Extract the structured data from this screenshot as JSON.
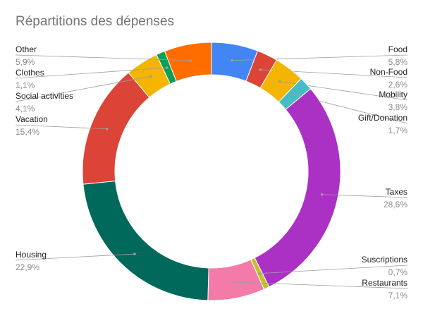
{
  "chart_data": {
    "type": "pie",
    "title": "Répartitions des dépenses",
    "donut": true,
    "legend": "none",
    "slices": [
      {
        "label": "Food",
        "value": 5.8,
        "value_label": "5,8%",
        "color": "#4285f4"
      },
      {
        "label": "Non-Food",
        "value": 2.6,
        "value_label": "2,6%",
        "color": "#db4437"
      },
      {
        "label": "Mobility",
        "value": 3.8,
        "value_label": "3,8%",
        "color": "#f4b400"
      },
      {
        "label": "Gift/Donation",
        "value": 1.7,
        "value_label": "1,7%",
        "color": "#46bdc6"
      },
      {
        "label": "Taxes",
        "value": 28.6,
        "value_label": "28,6%",
        "color": "#ab30c4"
      },
      {
        "label": "Suscriptions",
        "value": 0.7,
        "value_label": "0,7%",
        "color": "#c4c22a"
      },
      {
        "label": "Restaurants",
        "value": 7.1,
        "value_label": "7,1%",
        "color": "#f47aa8"
      },
      {
        "label": "Housing",
        "value": 22.9,
        "value_label": "22,9%",
        "color": "#00695c"
      },
      {
        "label": "Vacation",
        "value": 15.4,
        "value_label": "15,4%",
        "color": "#db4437"
      },
      {
        "label": "Social activities",
        "value": 4.1,
        "value_label": "4,1%",
        "color": "#f4b400"
      },
      {
        "label": "Clothes",
        "value": 1.1,
        "value_label": "1,1%",
        "color": "#0f9d58"
      },
      {
        "label": "Other",
        "value": 5.9,
        "value_label": "5,9%",
        "color": "#ff6d00"
      }
    ]
  }
}
